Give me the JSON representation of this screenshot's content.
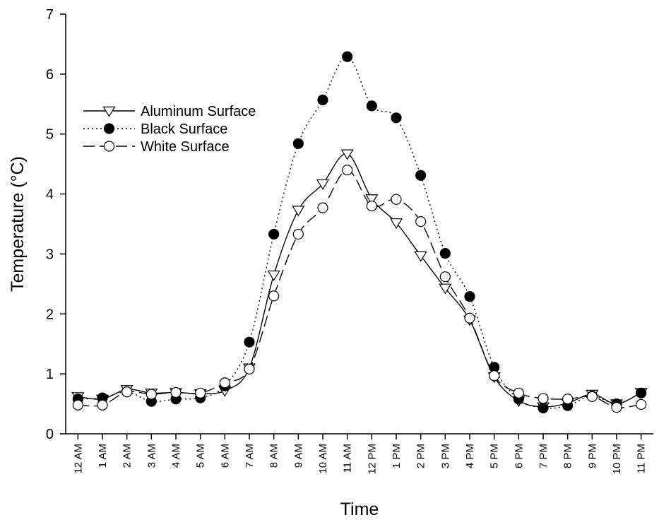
{
  "chart_data": {
    "type": "line",
    "title": "",
    "xlabel": "Time",
    "ylabel": "Temperature (°C)",
    "ylim": [
      0,
      7
    ],
    "yticks": [
      0,
      1,
      2,
      3,
      4,
      5,
      6,
      7
    ],
    "grid": false,
    "legend_position": "top-left",
    "categories": [
      "12 AM",
      "1 AM",
      "2 AM",
      "3 AM",
      "4 AM",
      "5 AM",
      "6 AM",
      "7 AM",
      "8 AM",
      "9 AM",
      "10 AM",
      "11 AM",
      "12 PM",
      "1 PM",
      "2 PM",
      "3 PM",
      "4 PM",
      "5 PM",
      "6 PM",
      "7 PM",
      "8 PM",
      "9 PM",
      "10 PM",
      "11 PM"
    ],
    "series": [
      {
        "name": "Aluminum Surface",
        "line_style": "solid",
        "marker": "triangle-down-open",
        "values": [
          0.62,
          0.58,
          0.74,
          0.68,
          0.69,
          0.67,
          0.72,
          1.1,
          2.65,
          3.73,
          4.17,
          4.67,
          3.92,
          3.52,
          2.97,
          2.43,
          1.9,
          0.95,
          0.55,
          0.45,
          0.51,
          0.66,
          0.5,
          0.69
        ]
      },
      {
        "name": "Black Surface",
        "line_style": "dotted",
        "marker": "circle-filled",
        "values": [
          0.58,
          0.6,
          0.7,
          0.54,
          0.58,
          0.6,
          0.8,
          1.53,
          3.33,
          4.84,
          5.57,
          6.29,
          5.47,
          5.27,
          4.31,
          3.01,
          2.29,
          1.11,
          0.58,
          0.43,
          0.47,
          0.63,
          0.5,
          0.68
        ]
      },
      {
        "name": "White Surface",
        "line_style": "dashed",
        "marker": "circle-open",
        "values": [
          0.48,
          0.48,
          0.7,
          0.66,
          0.69,
          0.68,
          0.85,
          1.08,
          2.3,
          3.33,
          3.77,
          4.4,
          3.8,
          3.91,
          3.54,
          2.62,
          1.93,
          0.97,
          0.68,
          0.59,
          0.58,
          0.62,
          0.44,
          0.49
        ]
      }
    ]
  }
}
